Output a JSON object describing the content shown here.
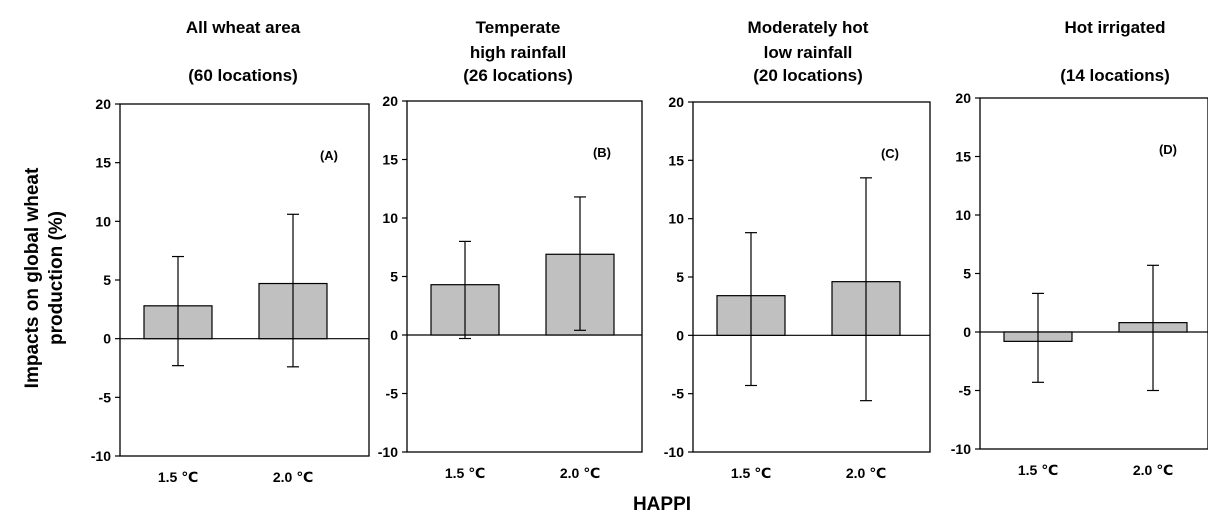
{
  "figure": {
    "ylabel_line1": "Impacts on global wheat",
    "ylabel_line2": "production (%)",
    "xlabel": "HAPPI"
  },
  "chart_data": [
    {
      "type": "bar",
      "panel_label": "(A)",
      "title_lines": [
        "All wheat area",
        "",
        "(60 locations)"
      ],
      "categories": [
        "1.5 ℃",
        "2.0 ℃"
      ],
      "values": [
        2.8,
        4.7
      ],
      "error_low": [
        -2.3,
        -2.4
      ],
      "error_high": [
        7.0,
        10.6
      ],
      "ylim": [
        -10,
        20
      ],
      "yticks": [
        -10,
        -5,
        0,
        5,
        10,
        15,
        20
      ],
      "bar_color": "#c0c0c0"
    },
    {
      "type": "bar",
      "panel_label": "(B)",
      "title_lines": [
        "Temperate",
        "high rainfall",
        "(26 locations)"
      ],
      "categories": [
        "1.5 ℃",
        "2.0 ℃"
      ],
      "values": [
        4.3,
        6.9
      ],
      "error_low": [
        -0.3,
        0.4
      ],
      "error_high": [
        8.0,
        11.8
      ],
      "ylim": [
        -10,
        20
      ],
      "yticks": [
        -10,
        -5,
        0,
        5,
        10,
        15,
        20
      ],
      "bar_color": "#c0c0c0"
    },
    {
      "type": "bar",
      "panel_label": "(C)",
      "title_lines": [
        "Moderately hot",
        "low rainfall",
        "(20 locations)"
      ],
      "categories": [
        "1.5 ℃",
        "2.0 ℃"
      ],
      "values": [
        3.4,
        4.6
      ],
      "error_low": [
        -4.3,
        -5.6
      ],
      "error_high": [
        8.8,
        13.5
      ],
      "ylim": [
        -10,
        20
      ],
      "yticks": [
        -10,
        -5,
        0,
        5,
        10,
        15,
        20
      ],
      "bar_color": "#c0c0c0"
    },
    {
      "type": "bar",
      "panel_label": "(D)",
      "title_lines": [
        "Hot irrigated",
        "",
        "(14 locations)"
      ],
      "categories": [
        "1.5 ℃",
        "2.0 ℃"
      ],
      "values": [
        -0.8,
        0.8
      ],
      "error_low": [
        -4.3,
        -5.0
      ],
      "error_high": [
        3.3,
        5.7
      ],
      "ylim": [
        -10,
        20
      ],
      "yticks": [
        -10,
        -5,
        0,
        5,
        10,
        15,
        20
      ],
      "bar_color": "#c0c0c0"
    }
  ]
}
